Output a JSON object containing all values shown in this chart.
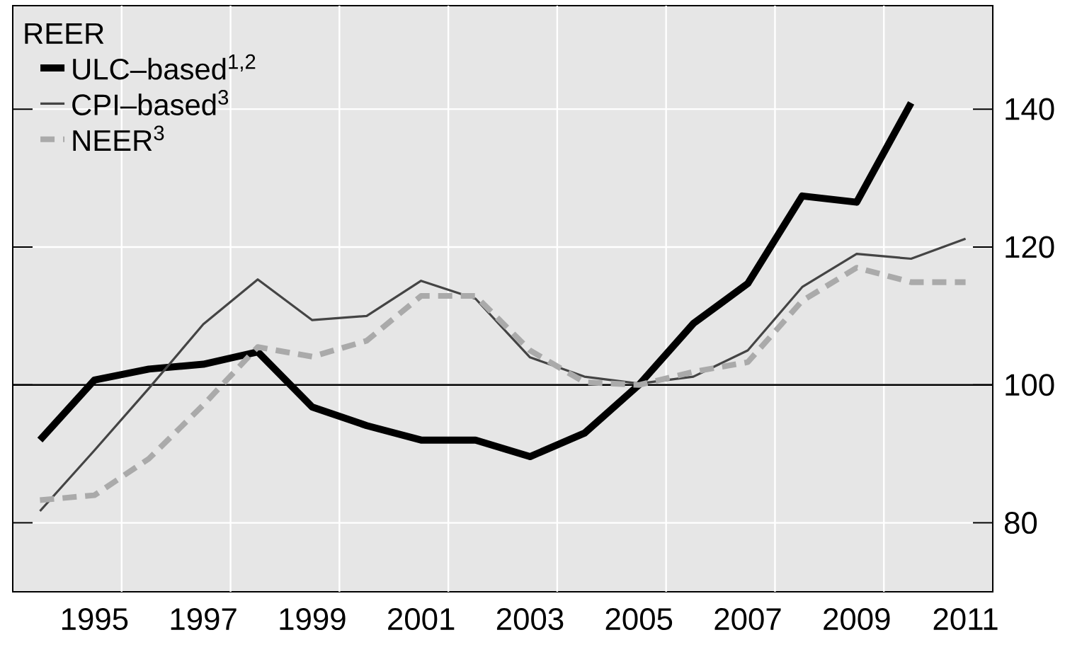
{
  "chart_data": {
    "type": "line",
    "legend_title": "REER",
    "categories": [
      null,
      "1995",
      null,
      "1997",
      null,
      "1999",
      null,
      "2001",
      null,
      "2003",
      null,
      "2005",
      null,
      "2007",
      null,
      "2009",
      null,
      "2011"
    ],
    "series": [
      {
        "name": "ULC–based$^{1,2}$",
        "color": "#000000",
        "line_style": "solid",
        "values": [
          92.0,
          100.7,
          102.3,
          103.0,
          104.8,
          96.8,
          94.1,
          92.0,
          92.0,
          89.6,
          93.0,
          100.0,
          108.9,
          114.7,
          127.4,
          126.5,
          140.9,
          null
        ]
      },
      {
        "name": "CPI–based$^{3}$",
        "color": "#444444",
        "line_style": "solid",
        "values": [
          81.7,
          90.5,
          99.5,
          108.8,
          115.3,
          109.4,
          110.0,
          115.1,
          112.5,
          104.0,
          101.2,
          100.2,
          101.2,
          105.0,
          114.2,
          119.0,
          118.3,
          121.2
        ]
      },
      {
        "name": "NEER$^{3}$",
        "color": "#aaaaaa",
        "line_style": "dashed",
        "values": [
          83.3,
          84.0,
          89.3,
          97.1,
          105.5,
          104.1,
          106.4,
          112.9,
          112.9,
          105.0,
          100.4,
          100.0,
          101.9,
          103.3,
          112.2,
          117.0,
          114.9,
          114.9
        ]
      }
    ],
    "ylim": [
      70,
      155
    ],
    "yticks": [
      80,
      100,
      120,
      140
    ],
    "ref_lines": [
      {
        "axis": "y",
        "value": 100,
        "color": "#000000"
      }
    ],
    "grid": true,
    "legend": "top left"
  }
}
